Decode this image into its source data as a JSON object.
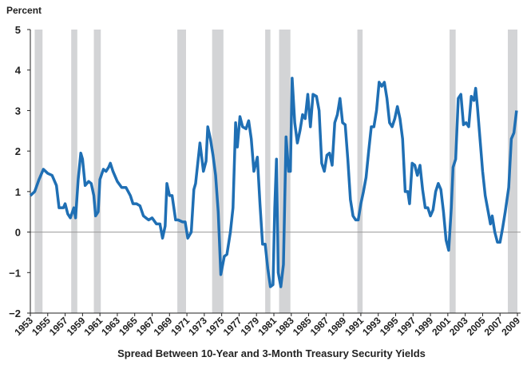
{
  "chart_data": {
    "type": "line",
    "title": "Spread Between 10-Year and 3-Month Treasury Security Yields",
    "y_label": "Percent",
    "xlim": [
      1953,
      2009
    ],
    "ylim": [
      -2,
      5
    ],
    "xticks": [
      1953,
      1955,
      1957,
      1959,
      1961,
      1963,
      1965,
      1967,
      1969,
      1971,
      1973,
      1975,
      1977,
      1979,
      1981,
      1983,
      1985,
      1987,
      1989,
      1991,
      1993,
      1995,
      1997,
      1999,
      2001,
      2003,
      2005,
      2007,
      2009
    ],
    "yticks": [
      {
        "value": -2,
        "label": "−2"
      },
      {
        "value": -1,
        "label": "−1"
      },
      0,
      1,
      2,
      3,
      4,
      5
    ],
    "recessions": [
      [
        1953.5,
        1954.4
      ],
      [
        1957.7,
        1958.4
      ],
      [
        1960.3,
        1961.1
      ],
      [
        1969.9,
        1970.9
      ],
      [
        1973.9,
        1975.2
      ],
      [
        1980.0,
        1980.6
      ],
      [
        1981.6,
        1982.9
      ],
      [
        1990.6,
        1991.2
      ],
      [
        2001.2,
        2001.9
      ],
      [
        2007.9,
        2009.0
      ]
    ],
    "recession_color": "#d3d4d6",
    "series": [
      {
        "name": "Spread",
        "color": "#1f6fb4",
        "x": [
          1953.0,
          1953.5,
          1954.0,
          1954.5,
          1955.0,
          1955.5,
          1956.0,
          1956.3,
          1956.8,
          1957.0,
          1957.3,
          1957.6,
          1958.0,
          1958.2,
          1958.5,
          1958.8,
          1959.0,
          1959.3,
          1959.7,
          1960.0,
          1960.3,
          1960.5,
          1960.8,
          1961.0,
          1961.4,
          1961.7,
          1962.0,
          1962.2,
          1962.5,
          1963.0,
          1963.5,
          1964.0,
          1964.5,
          1964.8,
          1965.2,
          1965.6,
          1966.0,
          1966.3,
          1966.6,
          1967.0,
          1967.5,
          1967.9,
          1968.2,
          1968.5,
          1968.7,
          1969.0,
          1969.3,
          1969.7,
          1970.0,
          1970.5,
          1970.8,
          1971.1,
          1971.5,
          1971.8,
          1972.0,
          1972.5,
          1972.9,
          1973.2,
          1973.4,
          1973.7,
          1974.0,
          1974.3,
          1974.6,
          1974.9,
          1975.3,
          1975.6,
          1976.0,
          1976.3,
          1976.6,
          1976.8,
          1977.1,
          1977.4,
          1977.8,
          1978.1,
          1978.4,
          1978.7,
          1979.1,
          1979.4,
          1979.7,
          1980.0,
          1980.3,
          1980.6,
          1980.9,
          1981.1,
          1981.3,
          1981.5,
          1981.8,
          1982.1,
          1982.4,
          1982.7,
          1982.9,
          1983.1,
          1983.4,
          1983.7,
          1984.0,
          1984.3,
          1984.6,
          1984.9,
          1985.2,
          1985.5,
          1985.9,
          1986.2,
          1986.5,
          1986.8,
          1987.1,
          1987.4,
          1987.7,
          1988.0,
          1988.3,
          1988.6,
          1988.9,
          1989.2,
          1989.5,
          1989.8,
          1990.1,
          1990.4,
          1990.7,
          1991.0,
          1991.3,
          1991.6,
          1991.9,
          1992.2,
          1992.5,
          1992.8,
          1993.1,
          1993.4,
          1993.7,
          1994.0,
          1994.3,
          1994.6,
          1994.9,
          1995.2,
          1995.5,
          1995.8,
          1996.1,
          1996.4,
          1996.6,
          1996.9,
          1997.2,
          1997.5,
          1997.8,
          1998.1,
          1998.4,
          1998.7,
          1999.0,
          1999.3,
          1999.6,
          1999.9,
          2000.2,
          2000.5,
          2000.8,
          2001.1,
          2001.4,
          2001.6,
          2001.9,
          2002.2,
          2002.5,
          2002.8,
          2003.1,
          2003.4,
          2003.7,
          2004.0,
          2004.2,
          2004.4,
          2004.7,
          2005.0,
          2005.3,
          2005.6,
          2005.9,
          2006.1,
          2006.4,
          2006.7,
          2007.0,
          2007.3,
          2007.6,
          2008.0,
          2008.3,
          2008.6,
          2008.9
        ],
        "values": [
          0.9,
          1.0,
          1.3,
          1.55,
          1.45,
          1.4,
          1.15,
          0.6,
          0.6,
          0.7,
          0.45,
          0.35,
          0.6,
          0.35,
          1.3,
          1.95,
          1.8,
          1.15,
          1.25,
          1.2,
          0.9,
          0.4,
          0.5,
          1.3,
          1.55,
          1.5,
          1.6,
          1.7,
          1.5,
          1.25,
          1.1,
          1.1,
          0.9,
          0.7,
          0.7,
          0.65,
          0.4,
          0.35,
          0.3,
          0.35,
          0.2,
          0.2,
          -0.15,
          0.15,
          1.2,
          0.9,
          0.9,
          0.3,
          0.3,
          0.25,
          0.25,
          -0.15,
          0.0,
          1.05,
          1.2,
          2.2,
          1.5,
          1.75,
          2.6,
          2.3,
          1.9,
          1.4,
          0.5,
          -1.05,
          -0.6,
          -0.55,
          0.0,
          0.6,
          2.7,
          2.1,
          2.85,
          2.6,
          2.55,
          2.75,
          2.3,
          1.5,
          1.85,
          0.7,
          -0.3,
          -0.3,
          -0.9,
          -1.35,
          -1.3,
          0.6,
          1.8,
          -1.0,
          -1.35,
          -0.8,
          2.35,
          1.5,
          1.5,
          3.8,
          2.7,
          2.2,
          2.5,
          2.9,
          2.8,
          3.4,
          2.6,
          3.4,
          3.35,
          3.0,
          1.7,
          1.5,
          1.9,
          1.95,
          1.65,
          2.7,
          2.9,
          3.3,
          2.7,
          2.65,
          1.8,
          0.8,
          0.4,
          0.3,
          0.3,
          0.7,
          1.0,
          1.35,
          2.0,
          2.6,
          2.6,
          3.0,
          3.7,
          3.6,
          3.7,
          3.3,
          2.7,
          2.6,
          2.8,
          3.1,
          2.8,
          2.3,
          1.0,
          1.0,
          0.7,
          1.7,
          1.65,
          1.4,
          1.65,
          1.05,
          0.6,
          0.6,
          0.4,
          0.55,
          1.0,
          1.2,
          1.05,
          0.5,
          -0.2,
          -0.45,
          0.6,
          1.6,
          1.8,
          3.3,
          3.4,
          2.65,
          2.7,
          2.6,
          3.35,
          3.25,
          3.55,
          3.1,
          2.3,
          1.5,
          0.9,
          0.55,
          0.2,
          0.4,
          0.0,
          -0.25,
          -0.25,
          0.1,
          0.5,
          1.1,
          2.3,
          2.45,
          3.0
        ]
      }
    ]
  }
}
